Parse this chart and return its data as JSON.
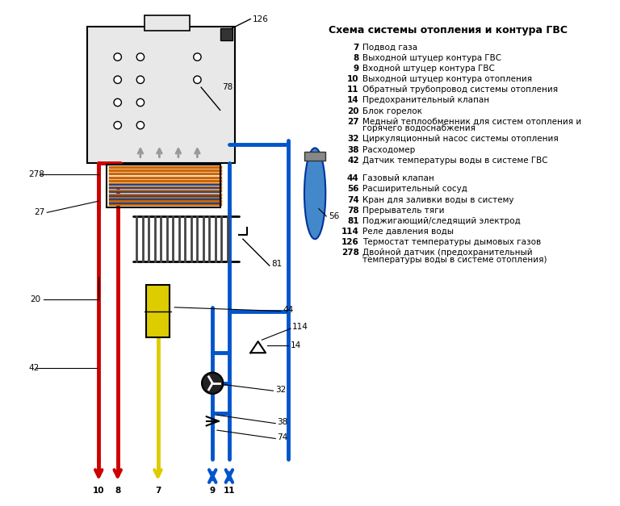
{
  "title": "Схема системы отопления и контура ГВС",
  "legend": [
    {
      "num": "7",
      "text": "Подвод газа"
    },
    {
      "num": "8",
      "text": "Выходной штуцер контура ГВС"
    },
    {
      "num": "9",
      "text": "Входной штуцер контура ГВС"
    },
    {
      "num": "10",
      "text": "Выходной штуцер контура отопления"
    },
    {
      "num": "11",
      "text": "Обратный трубопровод системы отопления"
    },
    {
      "num": "14",
      "text": "Предохранительный клапан"
    },
    {
      "num": "20",
      "text": "Блок горелок"
    },
    {
      "num": "27",
      "text": "Медный теплообменник для систем отопления и\nгорячего водоснабжения"
    },
    {
      "num": "32",
      "text": "Циркуляционный насос системы отопления"
    },
    {
      "num": "38",
      "text": "Расходомер"
    },
    {
      "num": "42",
      "text": "Датчик температуры воды в системе ГВС"
    },
    {
      "num": "44",
      "text": "Газовый клапан"
    },
    {
      "num": "56",
      "text": "Расширительный сосуд"
    },
    {
      "num": "74",
      "text": "Кран для заливки воды в систему"
    },
    {
      "num": "78",
      "text": "Прерыватель тяги"
    },
    {
      "num": "81",
      "text": "Поджигающий/следящий электрод"
    },
    {
      "num": "114",
      "text": "Реле давления воды"
    },
    {
      "num": "126",
      "text": "Термостат температуры дымовых газов"
    },
    {
      "num": "278",
      "text": "Двойной датчик (предохранительный\nтемпературы воды в системе отопления)"
    }
  ],
  "bg_color": "#ffffff",
  "diagram_bg": "#f0f0f0",
  "boiler_box_color": "#d0d0d0",
  "red_color": "#cc0000",
  "blue_color": "#0055cc",
  "yellow_color": "#ddcc00",
  "gray_color": "#888888",
  "light_blue": "#4488cc",
  "dark_blue": "#003388"
}
